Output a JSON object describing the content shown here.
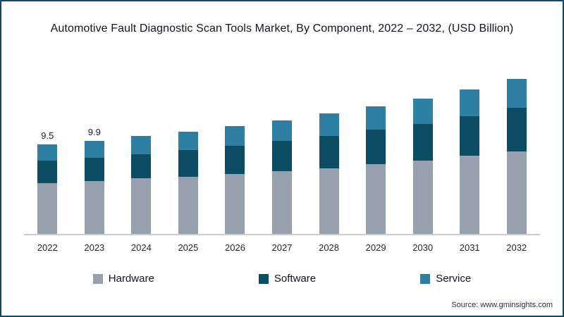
{
  "title": "Automotive Fault Diagnostic Scan Tools Market, By Component, 2022 – 2032, (USD Billion)",
  "source": "Source: www.gminsights.com",
  "colors": {
    "hardware": "#97a1ad",
    "software": "#0d4d63",
    "service": "#2f7fa3",
    "border": "#0e4b60",
    "axis": "#c9cdd2"
  },
  "chart_data": {
    "type": "bar",
    "stacked": true,
    "title": "Automotive Fault Diagnostic Scan Tools Market, By Component, 2022 – 2032, (USD Billion)",
    "xlabel": "",
    "ylabel": "USD Billion",
    "ylim": [
      0,
      18
    ],
    "grid": false,
    "legend_position": "bottom",
    "categories": [
      "2022",
      "2023",
      "2024",
      "2025",
      "2026",
      "2027",
      "2028",
      "2029",
      "2030",
      "2031",
      "2032"
    ],
    "series": [
      {
        "name": "Hardware",
        "color": "#97a1ad",
        "values": [
          5.4,
          5.6,
          5.9,
          6.1,
          6.4,
          6.7,
          7.0,
          7.4,
          7.8,
          8.3,
          8.8
        ]
      },
      {
        "name": "Software",
        "color": "#0d4d63",
        "values": [
          2.4,
          2.5,
          2.6,
          2.8,
          3.0,
          3.2,
          3.4,
          3.7,
          3.9,
          4.2,
          4.6
        ]
      },
      {
        "name": "Service",
        "color": "#2f7fa3",
        "values": [
          1.7,
          1.8,
          1.9,
          2.0,
          2.1,
          2.2,
          2.4,
          2.5,
          2.7,
          2.9,
          3.1
        ]
      }
    ],
    "totals": [
      9.5,
      9.9,
      10.4,
      10.9,
      11.5,
      12.1,
      12.8,
      13.6,
      14.4,
      15.4,
      16.5
    ],
    "data_labels": [
      "9.5",
      "9.9",
      "",
      "",
      "",
      "",
      "",
      "",
      "",
      "",
      ""
    ]
  },
  "legend": [
    {
      "label": "Hardware",
      "color": "#97a1ad"
    },
    {
      "label": "Software",
      "color": "#0d4d63"
    },
    {
      "label": "Service",
      "color": "#2f7fa3"
    }
  ]
}
